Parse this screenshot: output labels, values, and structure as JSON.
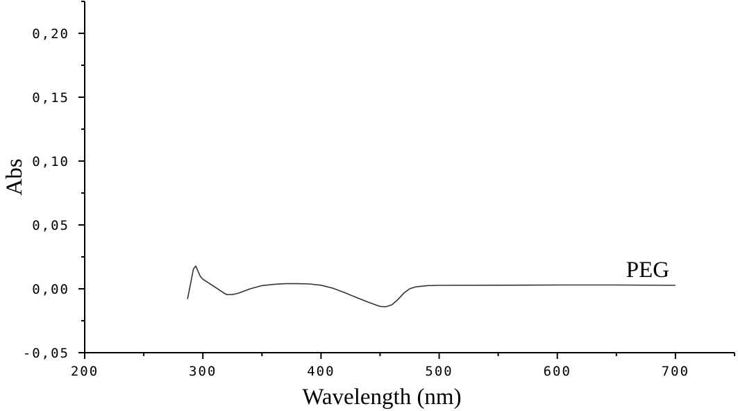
{
  "chart_data": {
    "type": "line",
    "title": "",
    "xlabel": "Wavelength (nm)",
    "ylabel": "Abs",
    "xlim": [
      200,
      750
    ],
    "ylim": [
      -0.05,
      0.225
    ],
    "x_ticks": [
      200,
      300,
      400,
      500,
      600,
      700
    ],
    "x_tick_labels": [
      "200",
      "300",
      "400",
      "500",
      "600",
      "700"
    ],
    "y_ticks": [
      -0.05,
      0.0,
      0.05,
      0.1,
      0.15,
      0.2
    ],
    "y_tick_labels": [
      "-0,05",
      "0,00",
      "0,05",
      "0,10",
      "0,15",
      "0,20"
    ],
    "grid": false,
    "series": [
      {
        "name": "PEG",
        "color": "#333333",
        "x": [
          287,
          290,
          292,
          294,
          296,
          298,
          300,
          305,
          310,
          315,
          320,
          325,
          330,
          340,
          350,
          360,
          370,
          380,
          390,
          400,
          410,
          420,
          430,
          440,
          450,
          455,
          460,
          465,
          470,
          475,
          480,
          490,
          500,
          550,
          600,
          650,
          700
        ],
        "y": [
          -0.008,
          0.006,
          0.0155,
          0.0178,
          0.0135,
          0.0095,
          0.0075,
          0.0045,
          0.0015,
          -0.0015,
          -0.0045,
          -0.0045,
          -0.0035,
          0.0,
          0.0025,
          0.0035,
          0.004,
          0.004,
          0.0038,
          0.0028,
          0.0005,
          -0.003,
          -0.0068,
          -0.0105,
          -0.0138,
          -0.014,
          -0.0125,
          -0.0085,
          -0.0035,
          0.0,
          0.0015,
          0.0025,
          0.0027,
          0.0028,
          0.003,
          0.003,
          0.0027
        ]
      }
    ]
  }
}
